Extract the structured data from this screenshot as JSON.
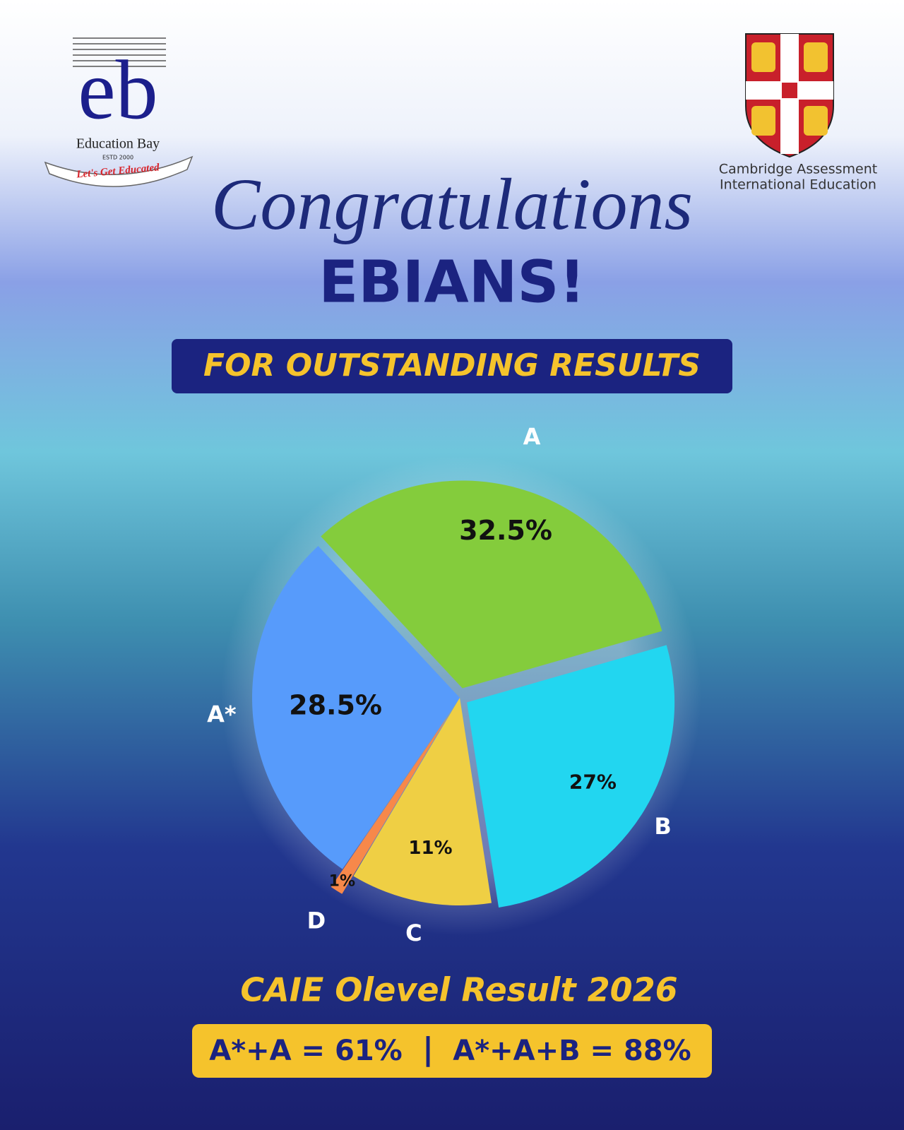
{
  "header": {
    "left_logo": {
      "mark": "eb",
      "name": "Education Bay",
      "established": "ESTD 2000",
      "tagline": "Let's Get Educated"
    },
    "right_logo": {
      "line1": "Cambridge Assessment",
      "line2": "International Education"
    }
  },
  "headline": {
    "script": "Congratulations",
    "main": "EBIANS!",
    "banner": "FOR OUTSTANDING RESULTS"
  },
  "chart_data": {
    "type": "pie",
    "categories": [
      "A",
      "B",
      "C",
      "D",
      "A*"
    ],
    "values": [
      32.5,
      27,
      11,
      1,
      28.5
    ],
    "value_labels": [
      "32.5%",
      "27%",
      "11%",
      "1%",
      "28.5%"
    ],
    "colors": [
      "#84cc3c",
      "#22d6f0",
      "#efcf44",
      "#f7884a",
      "#579bfb"
    ]
  },
  "footer": {
    "title": "CAIE Olevel Result 2026",
    "stat1": "A*+A = 61%",
    "separator": "|",
    "stat2": "A*+A+B = 88%"
  }
}
